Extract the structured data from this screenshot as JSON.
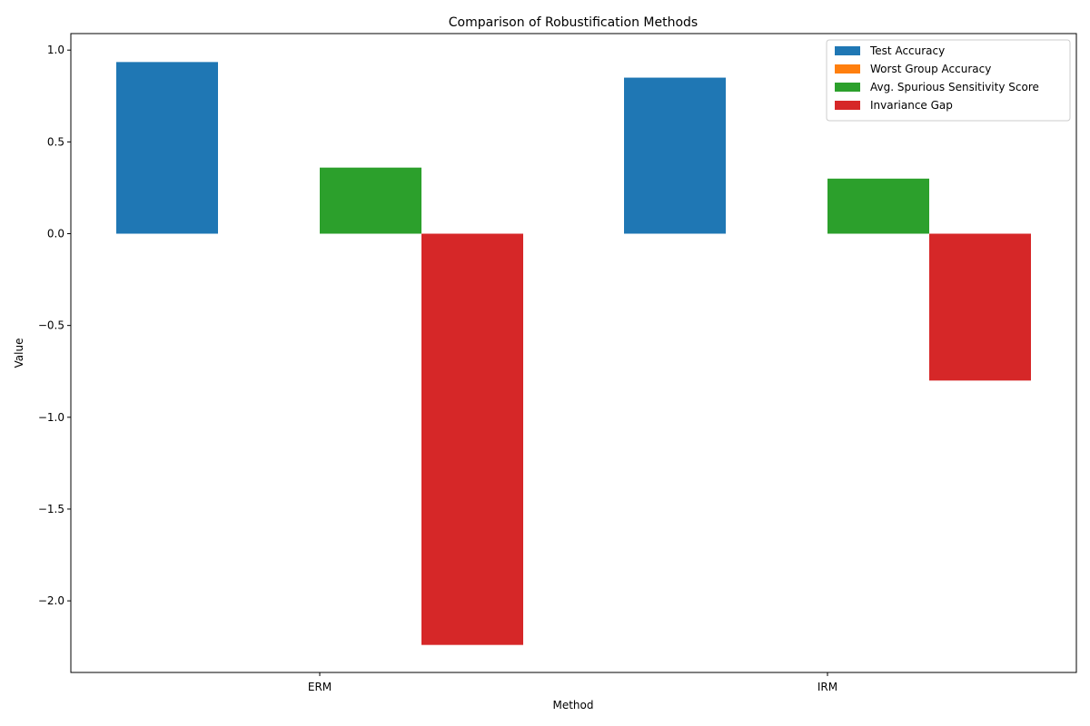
{
  "chart_data": {
    "type": "bar",
    "title": "Comparison of Robustification Methods",
    "xlabel": "Method",
    "ylabel": "Value",
    "categories": [
      "ERM",
      "IRM"
    ],
    "ylim": [
      -2.39,
      1.09
    ],
    "yticks": [
      1.0,
      0.5,
      0.0,
      -0.5,
      -1.0,
      -1.5,
      -2.0
    ],
    "ytick_labels": [
      "1.0",
      "0.5",
      "0.0",
      "−0.5",
      "−1.0",
      "−1.5",
      "−2.0"
    ],
    "grid": false,
    "legend_position": "top-right",
    "series": [
      {
        "name": "Test Accuracy",
        "color": "#1f77b4",
        "values": [
          0.935,
          0.85
        ]
      },
      {
        "name": "Worst Group Accuracy",
        "color": "#ff7f0e",
        "values": [
          0.0,
          0.0
        ]
      },
      {
        "name": "Avg. Spurious Sensitivity Score",
        "color": "#2ca02c",
        "values": [
          0.36,
          0.3
        ]
      },
      {
        "name": "Invariance Gap",
        "color": "#d62728",
        "values": [
          -2.24,
          -0.8
        ]
      }
    ]
  }
}
